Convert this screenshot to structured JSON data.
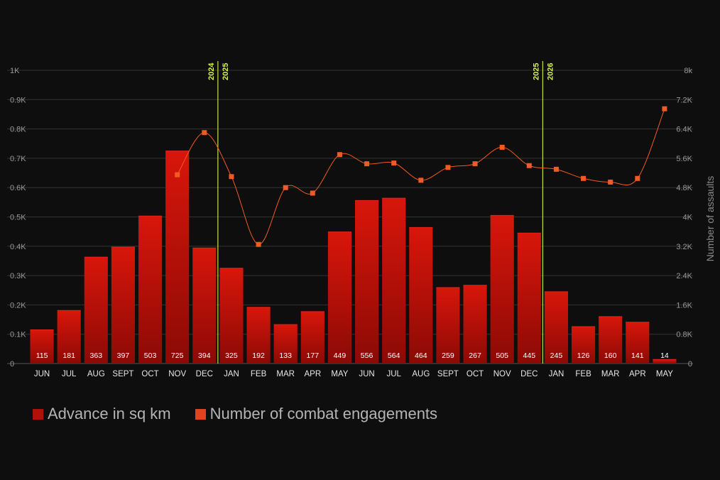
{
  "chart_data": {
    "type": "bar",
    "categories": [
      "JUN",
      "JUL",
      "AUG",
      "SEPT",
      "OCT",
      "NOV",
      "DEC",
      "JAN",
      "FEB",
      "MAR",
      "APR",
      "MAY",
      "JUN",
      "JUL",
      "AUG",
      "SEPT",
      "OCT",
      "NOV",
      "DEC",
      "JAN",
      "FEB",
      "MAR",
      "APR",
      "MAY"
    ],
    "series": [
      {
        "name": "Advance in sq km",
        "kind": "bar",
        "axis": "left",
        "color": "#cc1409",
        "values": [
          115,
          181,
          363,
          397,
          503,
          725,
          394,
          325,
          192,
          133,
          177,
          449,
          556,
          564,
          464,
          259,
          267,
          505,
          445,
          245,
          126,
          160,
          141,
          14
        ],
        "labels": [
          "115",
          "181",
          "363",
          "397",
          "503",
          "725",
          "394",
          "325",
          "192",
          "133",
          "177",
          "449",
          "556",
          "564",
          "464",
          "259",
          "267",
          "505",
          "445",
          "245",
          "126",
          "160",
          "141",
          "14"
        ]
      },
      {
        "name": "Number of combat engagements",
        "kind": "line",
        "axis": "right",
        "color": "#f05a23",
        "values": [
          null,
          null,
          null,
          null,
          null,
          5150,
          6300,
          5100,
          3250,
          4800,
          4650,
          5700,
          5450,
          5470,
          5000,
          5350,
          5450,
          5900,
          5400,
          5300,
          5050,
          4950,
          5050,
          6950
        ]
      }
    ],
    "y_left": {
      "range": [
        0,
        1000
      ],
      "ticks": [
        0,
        100,
        200,
        300,
        400,
        500,
        600,
        700,
        800,
        900,
        1000
      ],
      "tick_labels": [
        "0",
        "0.1K",
        "0.2K",
        "0.3K",
        "0.4K",
        "0.5K",
        "0.6K",
        "0.7K",
        "0.8K",
        "0.9K",
        "1K"
      ]
    },
    "y_right": {
      "label": "Number of assaults",
      "range": [
        0,
        8000
      ],
      "ticks": [
        0,
        800,
        1600,
        2400,
        3200,
        4000,
        4800,
        5600,
        6400,
        7200,
        8000
      ],
      "tick_labels": [
        "0",
        "0.8K",
        "1.6K",
        "2.4K",
        "3.2K",
        "4K",
        "4.8K",
        "5.6K",
        "6.4K",
        "7.2K",
        "8k"
      ]
    },
    "year_dividers": [
      {
        "after_index": 6,
        "left": "2024",
        "right": "2025"
      },
      {
        "after_index": 18,
        "left": "2025",
        "right": "2026"
      }
    ],
    "grid": true,
    "legend_position": "bottom-left"
  },
  "colors": {
    "background": "#0e0e0e",
    "bar_top": "#d8160b",
    "bar_bottom": "#8c0a05",
    "line": "#f05a23",
    "divider": "#c8e63a",
    "grid": "#333333"
  },
  "legend": [
    {
      "label": "Advance in sq km",
      "color": "#b0120a"
    },
    {
      "label": "Number of combat engagements",
      "color": "#e0441c"
    }
  ]
}
